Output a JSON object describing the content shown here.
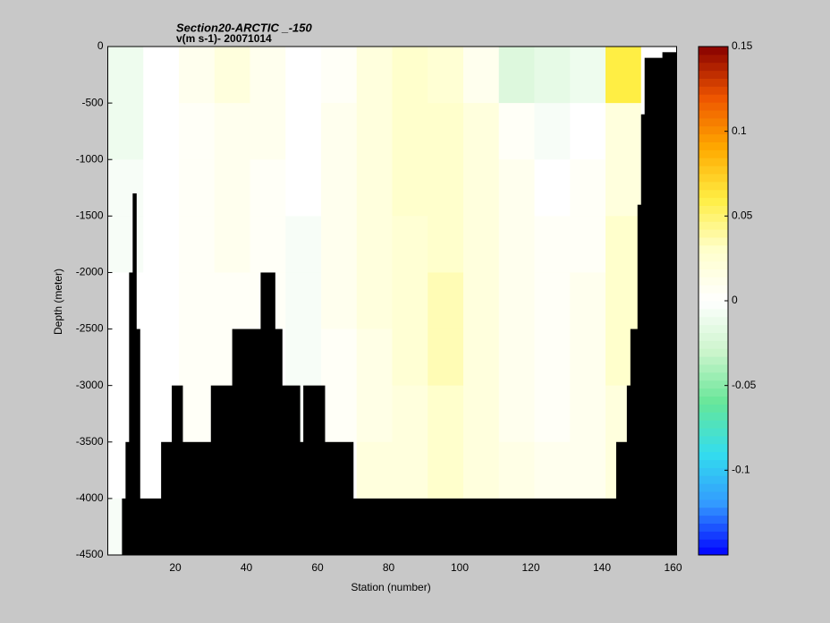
{
  "chart_data": {
    "type": "section",
    "title": "Section20-ARCTIC _-150",
    "subtitle": "v(m s-1)- 20071014",
    "xlabel": "Station (number)",
    "ylabel": "Depth (meter)",
    "xlim": [
      1,
      161
    ],
    "ylim": [
      -4500,
      0
    ],
    "xticks": [
      20,
      40,
      60,
      80,
      100,
      120,
      140,
      160
    ],
    "yticks": [
      0,
      -500,
      -1000,
      -1500,
      -2000,
      -2500,
      -3000,
      -3500,
      -4000,
      -4500
    ],
    "clim": [
      -0.15,
      0.15
    ],
    "cticks": [
      -0.1,
      -0.05,
      0,
      0.05,
      0.1,
      0.15
    ],
    "colormap": [
      "#0000ff",
      "#3399ff",
      "#33ddee",
      "#66e699",
      "#ccf5cc",
      "#ffffff",
      "#ffffcc",
      "#ffee44",
      "#ffaa00",
      "#ee5500",
      "#880000"
    ],
    "xbins": [
      1,
      11,
      21,
      31,
      41,
      51,
      61,
      71,
      81,
      91,
      101,
      111,
      121,
      131,
      141,
      151,
      161
    ],
    "ybins": [
      0,
      -500,
      -1000,
      -1500,
      -2000,
      -2500,
      -3000,
      -3500,
      -4000,
      -4500
    ],
    "z": [
      [
        -0.01,
        0,
        0.01,
        0.02,
        0.01,
        0,
        0.005,
        0.02,
        0.03,
        0.025,
        0.01,
        -0.02,
        -0.015,
        -0.01,
        0.06,
        0
      ],
      [
        -0.01,
        0,
        0.005,
        0.01,
        0.01,
        0,
        0.01,
        0.02,
        0.03,
        0.03,
        0.02,
        0.005,
        -0.005,
        0,
        0.02,
        0
      ],
      [
        -0.005,
        0,
        0.005,
        0.01,
        0.005,
        0,
        0.01,
        0.02,
        0.03,
        0.03,
        0.02,
        0.01,
        0,
        0.005,
        0.02,
        0
      ],
      [
        -0.005,
        0,
        0.005,
        0.01,
        0.005,
        -0.005,
        0.01,
        0.02,
        0.025,
        0.03,
        0.02,
        0.01,
        0.005,
        0.005,
        0.03,
        0
      ],
      [
        0,
        0,
        0.005,
        0.005,
        0.005,
        -0.005,
        0.01,
        0.02,
        0.025,
        0.035,
        0.02,
        0.01,
        0.005,
        0.01,
        0.03,
        0
      ],
      [
        0,
        0,
        0.005,
        0.005,
        0,
        -0.005,
        0.005,
        0.015,
        0.025,
        0.035,
        0.02,
        0.01,
        0.005,
        0.01,
        0.03,
        0
      ],
      [
        0,
        0,
        0.005,
        0,
        0,
        -0.005,
        0.005,
        0.015,
        0.02,
        0.03,
        0.02,
        0.01,
        0.005,
        0.01,
        0.02,
        0
      ],
      [
        0,
        0,
        0,
        0,
        0,
        0,
        0,
        0.02,
        0.02,
        0.03,
        0.02,
        0.015,
        0.01,
        0.01,
        0.02,
        0
      ],
      [
        -0.005,
        0,
        0,
        0,
        0,
        0,
        0,
        0,
        0,
        0,
        0,
        0,
        0,
        0,
        0,
        0
      ]
    ],
    "bottom": {
      "x": [
        1,
        5,
        6,
        7,
        8,
        9,
        10,
        16,
        19,
        22,
        30,
        36,
        44,
        48,
        50,
        55,
        56,
        62,
        70,
        144,
        147,
        148,
        150,
        151,
        152,
        157
      ],
      "depth": [
        -4500,
        -4000,
        -3500,
        -2000,
        -1300,
        -2500,
        -4000,
        -3500,
        -3000,
        -3500,
        -3000,
        -2500,
        -2000,
        -2500,
        -3000,
        -3500,
        -3000,
        -3500,
        -4000,
        -3500,
        -3000,
        -2500,
        -1400,
        -600,
        -100,
        -50
      ]
    }
  }
}
